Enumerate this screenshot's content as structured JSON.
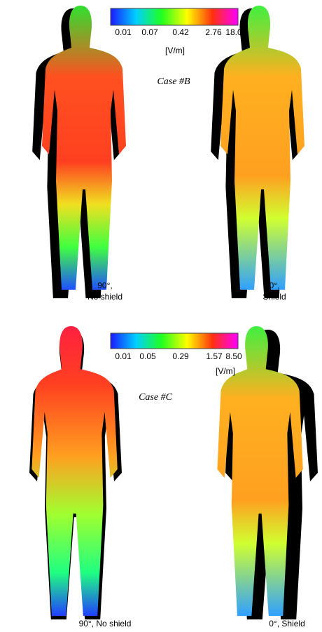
{
  "panels": [
    {
      "colorbar": {
        "ticks": [
          "0.01",
          "0.07",
          "0.42",
          "2.76",
          "18.0"
        ],
        "unit": "[V/m]"
      },
      "case": "Case #B",
      "bodies": [
        {
          "caption": [
            "90°,",
            "No shield"
          ]
        },
        {
          "caption": [
            "0°,",
            "Shield"
          ]
        }
      ]
    },
    {
      "colorbar": {
        "ticks": [
          "0.01",
          "0.05",
          "0.29",
          "1.57",
          "8.50"
        ],
        "unit": "[V/m]"
      },
      "case": "Case #C",
      "bodies": [
        {
          "caption": [
            "90°, No shield"
          ]
        },
        {
          "caption": [
            "0°, Shield"
          ]
        }
      ]
    }
  ]
}
